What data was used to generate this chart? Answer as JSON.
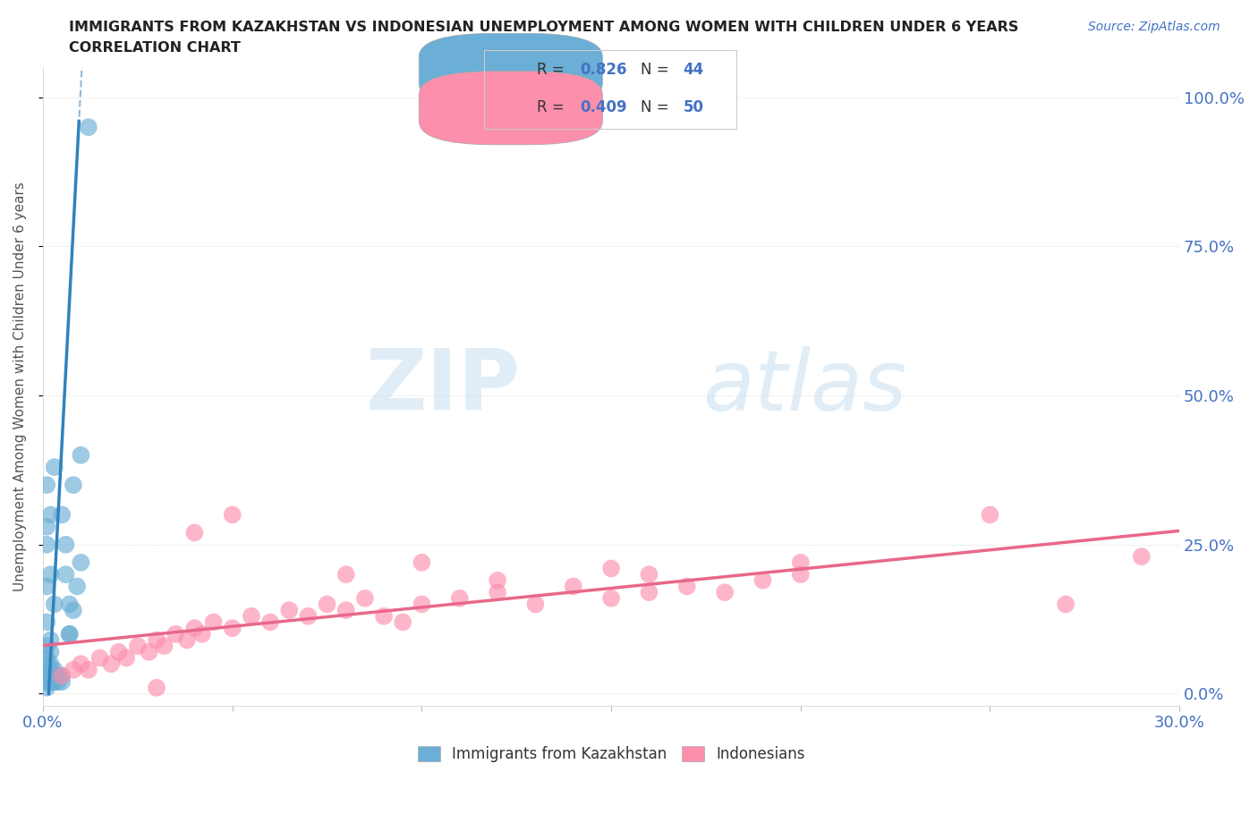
{
  "title_line1": "IMMIGRANTS FROM KAZAKHSTAN VS INDONESIAN UNEMPLOYMENT AMONG WOMEN WITH CHILDREN UNDER 6 YEARS",
  "title_line2": "CORRELATION CHART",
  "source": "Source: ZipAtlas.com",
  "ylabel": "Unemployment Among Women with Children Under 6 years",
  "xlim": [
    0.0,
    0.3
  ],
  "ylim": [
    -0.02,
    1.05
  ],
  "ytick_vals": [
    0.0,
    0.25,
    0.5,
    0.75,
    1.0
  ],
  "ytick_labels": [
    "0.0%",
    "25.0%",
    "50.0%",
    "75.0%",
    "100.0%"
  ],
  "xtick_vals": [
    0.0,
    0.05,
    0.1,
    0.15,
    0.2,
    0.25,
    0.3
  ],
  "xtick_labels": [
    "0.0%",
    "",
    "",
    "",
    "",
    "",
    "30.0%"
  ],
  "background_color": "#ffffff",
  "watermark_zip": "ZIP",
  "watermark_atlas": "atlas",
  "blue_color": "#6baed6",
  "pink_color": "#fc8fac",
  "blue_line_color": "#3182bd",
  "pink_line_color": "#e8688a",
  "legend_r1": "0.826",
  "legend_n1": "44",
  "legend_r2": "0.409",
  "legend_n2": "50",
  "kaz_x": [
    0.005,
    0.005,
    0.004,
    0.004,
    0.003,
    0.003,
    0.003,
    0.003,
    0.002,
    0.002,
    0.002,
    0.002,
    0.002,
    0.002,
    0.002,
    0.001,
    0.001,
    0.001,
    0.001,
    0.001,
    0.001,
    0.001,
    0.007,
    0.007,
    0.006,
    0.006,
    0.005,
    0.008,
    0.01,
    0.01,
    0.009,
    0.008,
    0.007,
    0.003,
    0.002,
    0.001,
    0.001,
    0.002,
    0.003,
    0.001,
    0.001,
    0.001,
    0.001,
    0.012
  ],
  "kaz_y": [
    0.02,
    0.03,
    0.02,
    0.03,
    0.02,
    0.03,
    0.04,
    0.02,
    0.02,
    0.03,
    0.05,
    0.07,
    0.09,
    0.02,
    0.04,
    0.01,
    0.02,
    0.03,
    0.04,
    0.05,
    0.06,
    0.02,
    0.1,
    0.15,
    0.2,
    0.25,
    0.3,
    0.35,
    0.4,
    0.22,
    0.18,
    0.14,
    0.1,
    0.38,
    0.3,
    0.28,
    0.25,
    0.2,
    0.15,
    0.35,
    0.08,
    0.12,
    0.18,
    0.95
  ],
  "indo_x": [
    0.005,
    0.008,
    0.01,
    0.012,
    0.015,
    0.018,
    0.02,
    0.022,
    0.025,
    0.028,
    0.03,
    0.032,
    0.035,
    0.038,
    0.04,
    0.042,
    0.045,
    0.05,
    0.055,
    0.06,
    0.065,
    0.07,
    0.075,
    0.08,
    0.085,
    0.09,
    0.095,
    0.1,
    0.11,
    0.12,
    0.13,
    0.14,
    0.15,
    0.16,
    0.17,
    0.18,
    0.19,
    0.2,
    0.05,
    0.08,
    0.1,
    0.12,
    0.15,
    0.2,
    0.25,
    0.27,
    0.29,
    0.16,
    0.03,
    0.04
  ],
  "indo_y": [
    0.03,
    0.04,
    0.05,
    0.04,
    0.06,
    0.05,
    0.07,
    0.06,
    0.08,
    0.07,
    0.09,
    0.08,
    0.1,
    0.09,
    0.11,
    0.1,
    0.12,
    0.11,
    0.13,
    0.12,
    0.14,
    0.13,
    0.15,
    0.14,
    0.16,
    0.13,
    0.12,
    0.15,
    0.16,
    0.17,
    0.15,
    0.18,
    0.16,
    0.17,
    0.18,
    0.17,
    0.19,
    0.2,
    0.3,
    0.2,
    0.22,
    0.19,
    0.21,
    0.22,
    0.3,
    0.15,
    0.23,
    0.2,
    0.01,
    0.27
  ]
}
